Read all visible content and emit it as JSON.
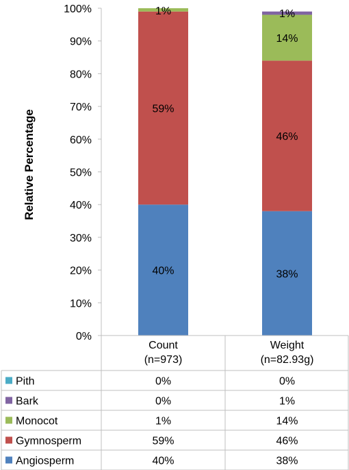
{
  "chart_data": {
    "type": "bar",
    "stacked": true,
    "ylabel": "Relative Percentage",
    "ylim": [
      0,
      100
    ],
    "yticks": [
      "0%",
      "10%",
      "20%",
      "30%",
      "40%",
      "50%",
      "60%",
      "70%",
      "80%",
      "90%",
      "100%"
    ],
    "categories": [
      {
        "line1": "Count",
        "line2": "(n=973)"
      },
      {
        "line1": "Weight",
        "line2": "(n=82.93g)"
      }
    ],
    "series": [
      {
        "name": "Angiosperm",
        "color": "#4f81bd",
        "values": [
          40,
          38
        ],
        "labels": [
          "40%",
          "38%"
        ],
        "bar_labels": [
          "40%",
          "38%"
        ]
      },
      {
        "name": "Gymnosperm",
        "color": "#c0504d",
        "values": [
          59,
          46
        ],
        "labels": [
          "59%",
          "46%"
        ],
        "bar_labels": [
          "59%",
          "46%"
        ]
      },
      {
        "name": "Monocot",
        "color": "#9bbb59",
        "values": [
          1,
          14
        ],
        "labels": [
          "1%",
          "14%"
        ],
        "bar_labels": [
          "1%",
          "14%"
        ]
      },
      {
        "name": "Bark",
        "color": "#8064a2",
        "values": [
          0,
          1
        ],
        "labels": [
          "0%",
          "1%"
        ],
        "bar_labels": [
          "",
          "1%"
        ]
      },
      {
        "name": "Pith",
        "color": "#4bacc6",
        "values": [
          0,
          0
        ],
        "labels": [
          "0%",
          "0%"
        ],
        "bar_labels": [
          "",
          ""
        ]
      }
    ],
    "legend": "data-table-bottom",
    "grid": false
  }
}
